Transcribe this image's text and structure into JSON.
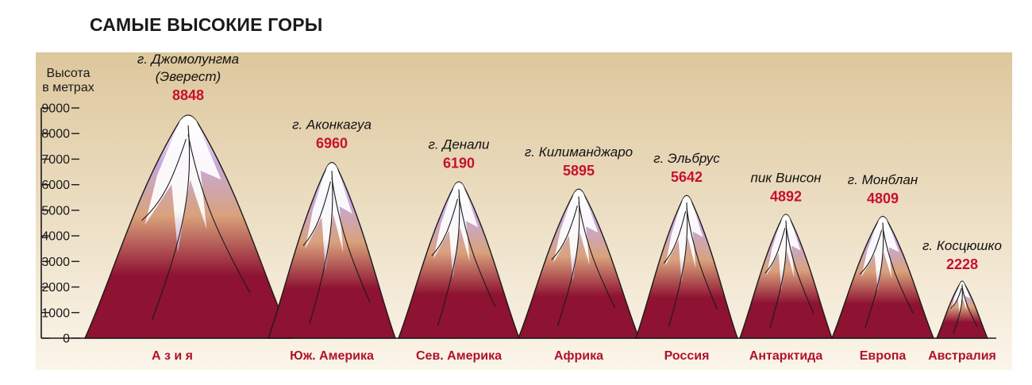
{
  "title": "САМЫЕ ВЫСОКИЕ ГОРЫ",
  "chart_data": {
    "type": "bar",
    "title": "САМЫЕ ВЫСОКИЕ ГОРЫ",
    "ylabel": [
      "Высота",
      "в метрах"
    ],
    "xlabel": "",
    "ylim": [
      0,
      9000
    ],
    "yticks": [
      0,
      1000,
      2000,
      3000,
      4000,
      5000,
      6000,
      7000,
      8000,
      9000
    ],
    "grid": false,
    "peaks": [
      {
        "continent": "А з и я",
        "name": [
          "г. Джомолунгма",
          "(Эверест)"
        ],
        "height": 8848
      },
      {
        "continent": "Юж. Америка",
        "name": [
          "г. Аконкагуа"
        ],
        "height": 6960
      },
      {
        "continent": "Сев. Америка",
        "name": [
          "г. Денали"
        ],
        "height": 6190
      },
      {
        "continent": "Африка",
        "name": [
          "г. Килиманджаро"
        ],
        "height": 5895
      },
      {
        "continent": "Россия",
        "name": [
          "г. Эльбрус"
        ],
        "height": 5642
      },
      {
        "continent": "Антарктида",
        "name": [
          "пик Винсон"
        ],
        "height": 4892
      },
      {
        "continent": "Европа",
        "name": [
          "г. Монблан"
        ],
        "height": 4809
      },
      {
        "continent": "Австралия",
        "name": [
          "г. Косцюшко"
        ],
        "height": 2228
      }
    ],
    "colors": {
      "background_top": "#ddc79c",
      "background_bottom": "#fbf5ea",
      "mountain_base": "#8e1232",
      "mountain_mid": "#d9a27c",
      "snow": "#ffffff",
      "snow_shadow": "#c6a8d9",
      "value": "#c8102e",
      "continent": "#b0122a"
    }
  }
}
